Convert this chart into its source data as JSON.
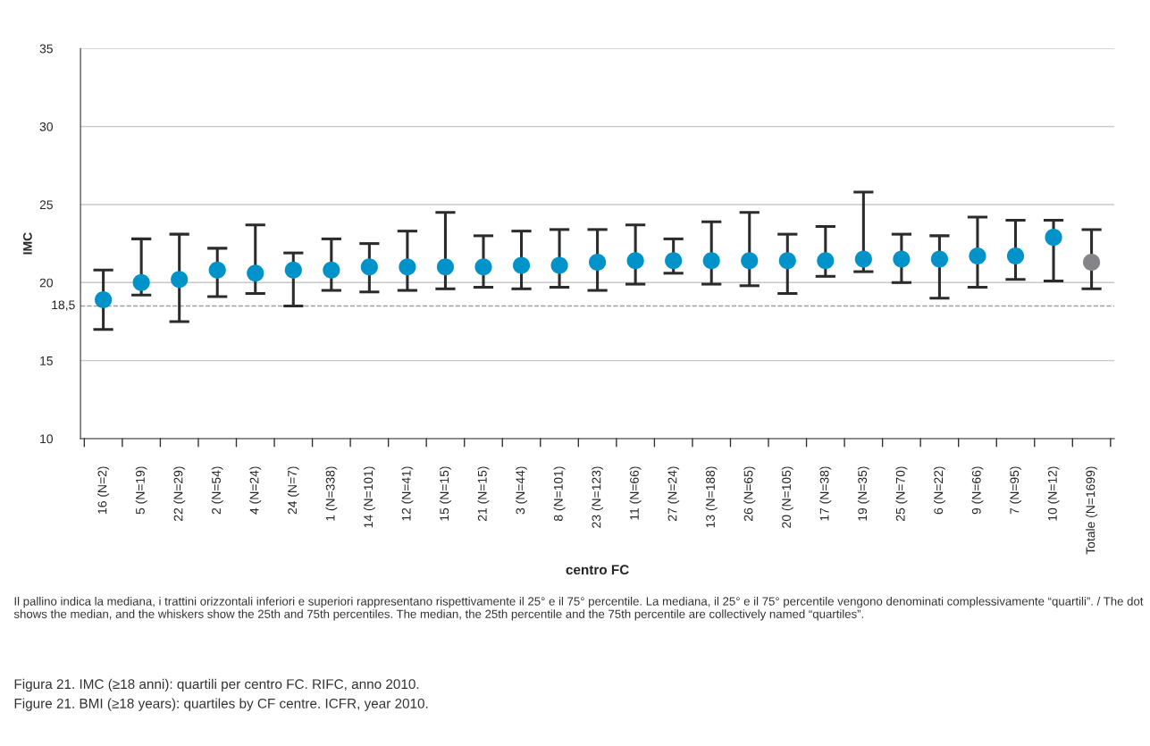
{
  "chart_data": {
    "type": "scatter",
    "xlabel": "centro FC",
    "ylabel": "IMC",
    "categories": [
      "16 (N=2)",
      "5 (N=19)",
      "22 (N=29)",
      "2 (N=54)",
      "4 (N=24)",
      "24 (N=7)",
      "1 (N=338)",
      "14 (N=101)",
      "12 (N=41)",
      "15 (N=15)",
      "21 (N=15)",
      "3 (N=44)",
      "8 (N=101)",
      "23 (N=123)",
      "11 (N=66)",
      "27 (N=24)",
      "13 (N=188)",
      "26 (N=65)",
      "20 (N=105)",
      "17 (N=38)",
      "19 (N=35)",
      "25 (N=70)",
      "6 (N=22)",
      "9 (N=66)",
      "7 (N=95)",
      "10 (N=12)",
      "Totale (N=1699)"
    ],
    "values": [
      18.9,
      20.0,
      20.2,
      20.8,
      20.6,
      20.8,
      20.8,
      21.0,
      21.0,
      21.0,
      21.0,
      21.1,
      21.1,
      21.3,
      21.4,
      21.4,
      21.4,
      21.4,
      21.4,
      21.4,
      21.5,
      21.5,
      21.5,
      21.7,
      21.7,
      22.9,
      21.3
    ],
    "errors": [
      [
        17.0,
        20.8
      ],
      [
        19.2,
        22.8
      ],
      [
        17.5,
        23.1
      ],
      [
        19.1,
        22.2
      ],
      [
        19.3,
        23.7
      ],
      [
        18.5,
        21.9
      ],
      [
        19.5,
        22.8
      ],
      [
        19.4,
        22.5
      ],
      [
        19.5,
        23.3
      ],
      [
        19.6,
        24.5
      ],
      [
        19.7,
        23.0
      ],
      [
        19.6,
        23.3
      ],
      [
        19.7,
        23.4
      ],
      [
        19.5,
        23.4
      ],
      [
        19.9,
        23.7
      ],
      [
        20.6,
        22.8
      ],
      [
        19.9,
        23.9
      ],
      [
        19.8,
        24.5
      ],
      [
        19.3,
        23.1
      ],
      [
        20.4,
        23.6
      ],
      [
        20.7,
        25.8
      ],
      [
        20.0,
        23.1
      ],
      [
        19.0,
        23.0
      ],
      [
        19.7,
        24.2
      ],
      [
        20.2,
        24.0
      ],
      [
        20.1,
        24.0
      ],
      [
        19.6,
        23.4
      ]
    ],
    "colors": [
      "#0093c9",
      "#0093c9",
      "#0093c9",
      "#0093c9",
      "#0093c9",
      "#0093c9",
      "#0093c9",
      "#0093c9",
      "#0093c9",
      "#0093c9",
      "#0093c9",
      "#0093c9",
      "#0093c9",
      "#0093c9",
      "#0093c9",
      "#0093c9",
      "#0093c9",
      "#0093c9",
      "#0093c9",
      "#0093c9",
      "#0093c9",
      "#0093c9",
      "#0093c9",
      "#0093c9",
      "#0093c9",
      "#0093c9",
      "#858589"
    ],
    "marker": "circle",
    "ylim": [
      10,
      35
    ],
    "yticks": [
      10,
      15,
      20,
      25,
      30,
      35
    ],
    "grid": "y",
    "ref_lines": [
      {
        "axis": "y",
        "value": 18.5,
        "label": "18,5",
        "color": "#a0a0a0",
        "line_style": "dashed"
      }
    ],
    "annotations": [
      "Il pallino indica la mediana, i trattini orizzontali inferiori e superiori rappresentano rispettivamente il 25° e il 75° percentile. La mediana, il 25° e il 75° percentile vengono denominati complessivamente “quartili”. / The dot shows the median, and the whiskers show the 25th and 75th percentiles. The median, the 25th percentile and the 75th percentile are collectively named “quartiles”.",
      "Figura 21. IMC (≥18 anni): quartili per centro FC. RIFC, anno 2010.",
      "Figure 21. BMI (≥18 years): quartiles by CF centre. ICFR, year 2010."
    ]
  }
}
